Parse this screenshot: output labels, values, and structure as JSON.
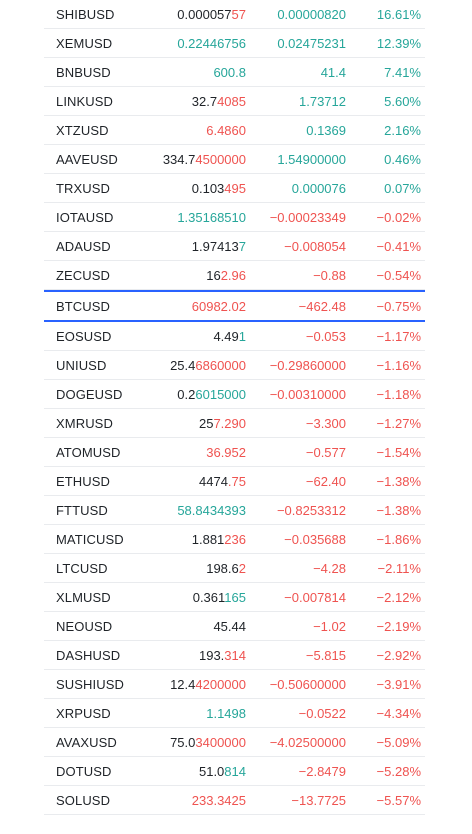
{
  "colors": {
    "up": "#26a69a",
    "down": "#ef5350",
    "neutral": "#1f2328",
    "selected_border": "#2962ff"
  },
  "rows": [
    {
      "symbol": "SHIBUSD",
      "last_base": "0.000057",
      "last_tick": "57",
      "last_dir": "down",
      "change": "0.00000820",
      "change_pct": "16.61%",
      "dir": "up"
    },
    {
      "symbol": "XEMUSD",
      "last_base": "",
      "last_tick": "0.22446756",
      "last_dir": "up",
      "change": "0.02475231",
      "change_pct": "12.39%",
      "dir": "up"
    },
    {
      "symbol": "BNBUSD",
      "last_base": "",
      "last_tick": "600.8",
      "last_dir": "up",
      "change": "41.4",
      "change_pct": "7.41%",
      "dir": "up"
    },
    {
      "symbol": "LINKUSD",
      "last_base": "32.7",
      "last_tick": "4085",
      "last_dir": "down",
      "change": "1.73712",
      "change_pct": "5.60%",
      "dir": "up"
    },
    {
      "symbol": "XTZUSD",
      "last_base": "",
      "last_tick": "6.4860",
      "last_dir": "down",
      "change": "0.1369",
      "change_pct": "2.16%",
      "dir": "up"
    },
    {
      "symbol": "AAVEUSD",
      "last_base": "334.7",
      "last_tick": "4500000",
      "last_dir": "down",
      "change": "1.54900000",
      "change_pct": "0.46%",
      "dir": "up"
    },
    {
      "symbol": "TRXUSD",
      "last_base": "0.103",
      "last_tick": "495",
      "last_dir": "down",
      "change": "0.000076",
      "change_pct": "0.07%",
      "dir": "up"
    },
    {
      "symbol": "IOTAUSD",
      "last_base": "",
      "last_tick": "1.35168510",
      "last_dir": "up",
      "change": "−0.00023349",
      "change_pct": "−0.02%",
      "dir": "down"
    },
    {
      "symbol": "ADAUSD",
      "last_base": "1.97413",
      "last_tick": "7",
      "last_dir": "up",
      "change": "−0.008054",
      "change_pct": "−0.41%",
      "dir": "down"
    },
    {
      "symbol": "ZECUSD",
      "last_base": "16",
      "last_tick": "2.96",
      "last_dir": "down",
      "change": "−0.88",
      "change_pct": "−0.54%",
      "dir": "down"
    },
    {
      "symbol": "BTCUSD",
      "last_base": "",
      "last_tick": "60982.02",
      "last_dir": "down",
      "change": "−462.48",
      "change_pct": "−0.75%",
      "dir": "down",
      "selected": true
    },
    {
      "symbol": "EOSUSD",
      "last_base": "4.49",
      "last_tick": "1",
      "last_dir": "up",
      "change": "−0.053",
      "change_pct": "−1.17%",
      "dir": "down"
    },
    {
      "symbol": "UNIUSD",
      "last_base": "25.4",
      "last_tick": "6860000",
      "last_dir": "down",
      "change": "−0.29860000",
      "change_pct": "−1.16%",
      "dir": "down"
    },
    {
      "symbol": "DOGEUSD",
      "last_base": "0.2",
      "last_tick": "6015000",
      "last_dir": "up",
      "change": "−0.00310000",
      "change_pct": "−1.18%",
      "dir": "down"
    },
    {
      "symbol": "XMRUSD",
      "last_base": "25",
      "last_tick": "7.290",
      "last_dir": "down",
      "change": "−3.300",
      "change_pct": "−1.27%",
      "dir": "down"
    },
    {
      "symbol": "ATOMUSD",
      "last_base": "",
      "last_tick": "36.952",
      "last_dir": "down",
      "change": "−0.577",
      "change_pct": "−1.54%",
      "dir": "down"
    },
    {
      "symbol": "ETHUSD",
      "last_base": "4474",
      "last_tick": ".75",
      "last_dir": "down",
      "change": "−62.40",
      "change_pct": "−1.38%",
      "dir": "down"
    },
    {
      "symbol": "FTTUSD",
      "last_base": "",
      "last_tick": "58.8434393",
      "last_dir": "up",
      "change": "−0.8253312",
      "change_pct": "−1.38%",
      "dir": "down"
    },
    {
      "symbol": "MATICUSD",
      "last_base": "1.881",
      "last_tick": "236",
      "last_dir": "down",
      "change": "−0.035688",
      "change_pct": "−1.86%",
      "dir": "down"
    },
    {
      "symbol": "LTCUSD",
      "last_base": "198.6",
      "last_tick": "2",
      "last_dir": "down",
      "change": "−4.28",
      "change_pct": "−2.11%",
      "dir": "down"
    },
    {
      "symbol": "XLMUSD",
      "last_base": "0.361",
      "last_tick": "165",
      "last_dir": "up",
      "change": "−0.007814",
      "change_pct": "−2.12%",
      "dir": "down"
    },
    {
      "symbol": "NEOUSD",
      "last_base": "45.44",
      "last_tick": "",
      "last_dir": "neutral",
      "change": "−1.02",
      "change_pct": "−2.19%",
      "dir": "down"
    },
    {
      "symbol": "DASHUSD",
      "last_base": "193.",
      "last_tick": "314",
      "last_dir": "down",
      "change": "−5.815",
      "change_pct": "−2.92%",
      "dir": "down"
    },
    {
      "symbol": "SUSHIUSD",
      "last_base": "12.4",
      "last_tick": "4200000",
      "last_dir": "down",
      "change": "−0.50600000",
      "change_pct": "−3.91%",
      "dir": "down"
    },
    {
      "symbol": "XRPUSD",
      "last_base": "",
      "last_tick": "1.1498",
      "last_dir": "up",
      "change": "−0.0522",
      "change_pct": "−4.34%",
      "dir": "down"
    },
    {
      "symbol": "AVAXUSD",
      "last_base": "75.0",
      "last_tick": "3400000",
      "last_dir": "down",
      "change": "−4.02500000",
      "change_pct": "−5.09%",
      "dir": "down"
    },
    {
      "symbol": "DOTUSD",
      "last_base": "51.0",
      "last_tick": "814",
      "last_dir": "up",
      "change": "−2.8479",
      "change_pct": "−5.28%",
      "dir": "down"
    },
    {
      "symbol": "SOLUSD",
      "last_base": "",
      "last_tick": "233.3425",
      "last_dir": "down",
      "change": "−13.7725",
      "change_pct": "−5.57%",
      "dir": "down"
    }
  ]
}
